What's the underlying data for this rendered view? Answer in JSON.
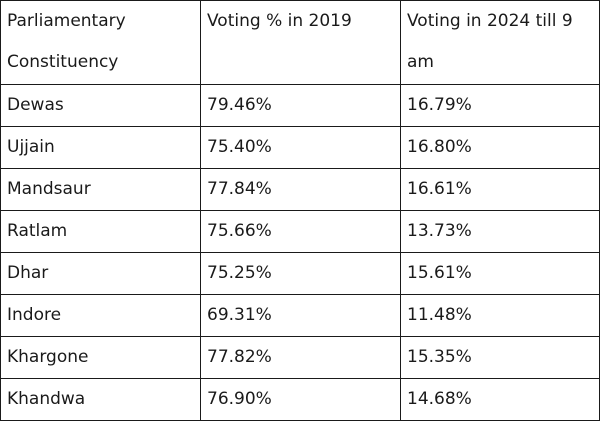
{
  "table": {
    "headers": [
      "Parliamentary Constituency",
      "Voting % in 2019",
      "Voting in 2024 till 9 am"
    ],
    "rows": [
      [
        "Dewas",
        "79.46%",
        "16.79%"
      ],
      [
        "Ujjain",
        "75.40%",
        "16.80%"
      ],
      [
        "Mandsaur",
        "77.84%",
        "16.61%"
      ],
      [
        "Ratlam",
        "75.66%",
        "13.73%"
      ],
      [
        "Dhar",
        "75.25%",
        "15.61%"
      ],
      [
        "Indore",
        "69.31%",
        "11.48%"
      ],
      [
        "Khargone",
        "77.82%",
        "15.35%"
      ],
      [
        "Khandwa",
        "76.90%",
        "14.68%"
      ]
    ]
  }
}
